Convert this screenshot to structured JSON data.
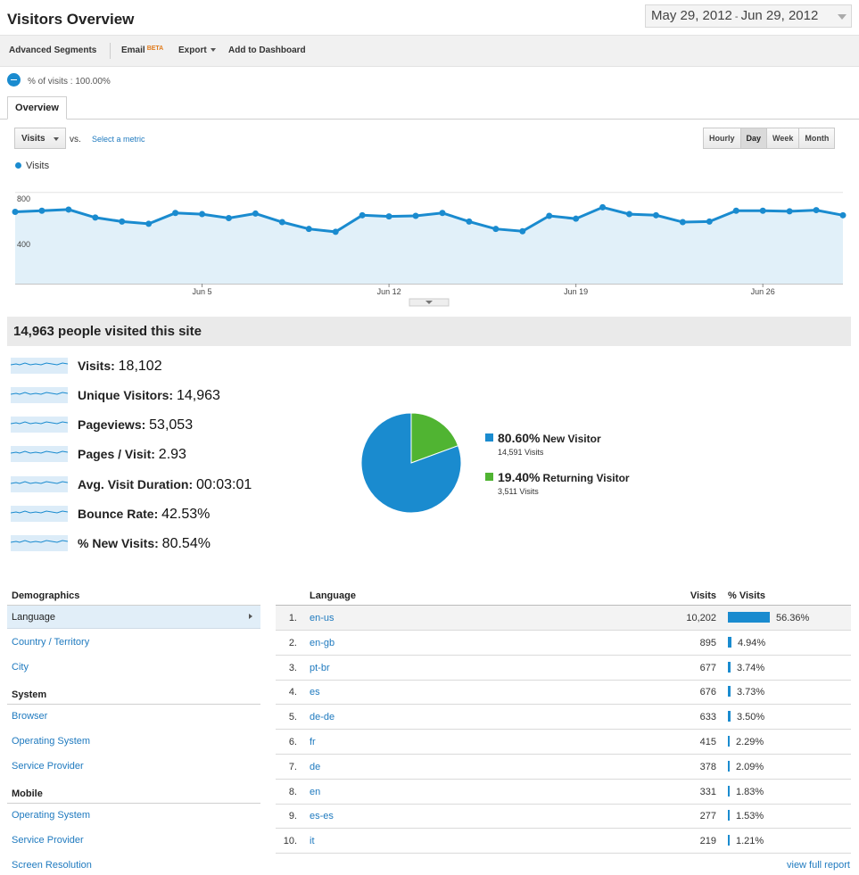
{
  "header": {
    "title": "Visitors Overview",
    "date_start": "May 29, 2012",
    "date_sep": "-",
    "date_end": "Jun 29, 2012"
  },
  "toolbar": {
    "advanced_segments": "Advanced Segments",
    "email": "Email",
    "beta": "BETA",
    "export": "Export",
    "add_to_dashboard": "Add to Dashboard"
  },
  "segment": {
    "label": "% of visits : 100.00%"
  },
  "tabs": [
    {
      "label": "Overview"
    }
  ],
  "metric_controls": {
    "primary_metric": "Visits",
    "vs": "vs.",
    "select_metric": "Select a metric",
    "granularity": [
      "Hourly",
      "Day",
      "Week",
      "Month"
    ],
    "active_granularity": "Day"
  },
  "chart_data": {
    "type": "area",
    "legend": "Visits",
    "y_ticks": [
      "800",
      "400"
    ],
    "x_ticks": [
      "Jun 5",
      "Jun 12",
      "Jun 19",
      "Jun 26"
    ],
    "x_tick_day_index": [
      7,
      14,
      21,
      28
    ],
    "ylim": [
      0,
      900
    ],
    "grid": true,
    "color": "#1a8bcf",
    "fill": "#e1f0f9",
    "x": [
      "May 29",
      "May 30",
      "May 31",
      "Jun 1",
      "Jun 2",
      "Jun 3",
      "Jun 4",
      "Jun 5",
      "Jun 6",
      "Jun 7",
      "Jun 8",
      "Jun 9",
      "Jun 10",
      "Jun 11",
      "Jun 12",
      "Jun 13",
      "Jun 14",
      "Jun 15",
      "Jun 16",
      "Jun 17",
      "Jun 18",
      "Jun 19",
      "Jun 20",
      "Jun 21",
      "Jun 22",
      "Jun 23",
      "Jun 24",
      "Jun 25",
      "Jun 26",
      "Jun 27",
      "Jun 28",
      "Jun 29"
    ],
    "values": [
      630,
      640,
      650,
      580,
      545,
      525,
      620,
      610,
      575,
      615,
      540,
      480,
      455,
      600,
      590,
      595,
      620,
      545,
      480,
      460,
      595,
      570,
      670,
      610,
      600,
      540,
      545,
      640,
      640,
      635,
      645,
      600
    ]
  },
  "summary": {
    "title": "14,963 people visited this site",
    "metrics": [
      {
        "label": "Visits:",
        "value": "18,102"
      },
      {
        "label": "Unique Visitors:",
        "value": "14,963"
      },
      {
        "label": "Pageviews:",
        "value": "53,053"
      },
      {
        "label": "Pages / Visit:",
        "value": "2.93"
      },
      {
        "label": "Avg. Visit Duration:",
        "value": "00:03:01"
      },
      {
        "label": "Bounce Rate:",
        "value": "42.53%"
      },
      {
        "label": "% New Visits:",
        "value": "80.54%"
      }
    ],
    "pie": {
      "slices": [
        {
          "pct": "80.60%",
          "name": "New Visitor",
          "visits": "14,591 Visits",
          "fraction": 0.806,
          "color": "#1a8bcf"
        },
        {
          "pct": "19.40%",
          "name": "Returning Visitor",
          "visits": "3,511 Visits",
          "fraction": 0.194,
          "color": "#50b432"
        }
      ]
    }
  },
  "demographics_nav": {
    "sections": [
      {
        "title": "Demographics",
        "items": [
          "Language",
          "Country / Territory",
          "City"
        ]
      },
      {
        "title": "System",
        "items": [
          "Browser",
          "Operating System",
          "Service Provider"
        ]
      },
      {
        "title": "Mobile",
        "items": [
          "Operating System",
          "Service Provider",
          "Screen Resolution"
        ]
      }
    ],
    "active_item": "Language"
  },
  "language_table": {
    "headers": {
      "name": "Language",
      "visits": "Visits",
      "pct": "% Visits"
    },
    "rows": [
      {
        "rank": "1.",
        "lang": "en-us",
        "visits": "10,202",
        "pct": "56.36%",
        "share": 0.5636
      },
      {
        "rank": "2.",
        "lang": "en-gb",
        "visits": "895",
        "pct": "4.94%",
        "share": 0.0494
      },
      {
        "rank": "3.",
        "lang": "pt-br",
        "visits": "677",
        "pct": "3.74%",
        "share": 0.0374
      },
      {
        "rank": "4.",
        "lang": "es",
        "visits": "676",
        "pct": "3.73%",
        "share": 0.0373
      },
      {
        "rank": "5.",
        "lang": "de-de",
        "visits": "633",
        "pct": "3.50%",
        "share": 0.035
      },
      {
        "rank": "6.",
        "lang": "fr",
        "visits": "415",
        "pct": "2.29%",
        "share": 0.0229
      },
      {
        "rank": "7.",
        "lang": "de",
        "visits": "378",
        "pct": "2.09%",
        "share": 0.0209
      },
      {
        "rank": "8.",
        "lang": "en",
        "visits": "331",
        "pct": "1.83%",
        "share": 0.0183
      },
      {
        "rank": "9.",
        "lang": "es-es",
        "visits": "277",
        "pct": "1.53%",
        "share": 0.0153
      },
      {
        "rank": "10.",
        "lang": "it",
        "visits": "219",
        "pct": "1.21%",
        "share": 0.0121
      }
    ],
    "view_full_report": "view full report"
  }
}
